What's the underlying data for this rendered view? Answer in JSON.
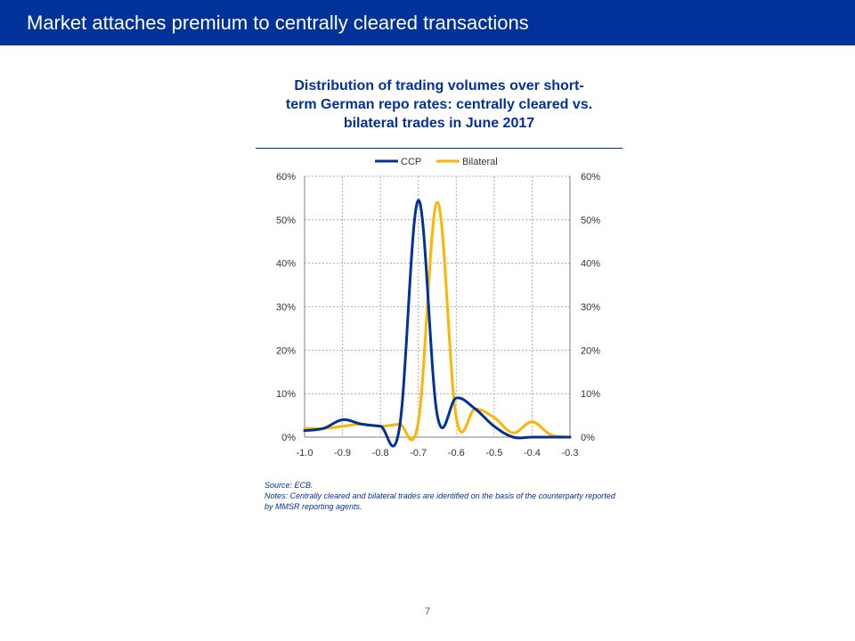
{
  "header": {
    "title": "Market attaches premium to centrally cleared transactions"
  },
  "footer": {
    "page_number": "7"
  },
  "colors": {
    "header_bg": "#003299",
    "ccp": "#003299",
    "bilateral": "#FFB400",
    "grid": "#9a9a9a"
  },
  "chart_data": {
    "type": "line",
    "title": "Distribution of trading volumes over short-term German repo rates: centrally cleared vs. bilateral trades in June 2017",
    "title_lines": [
      "Distribution of trading volumes over short-",
      "term German repo rates: centrally cleared vs.",
      "bilateral trades in June 2017"
    ],
    "xlabel": "",
    "ylabel": "",
    "xlim": [
      -1.0,
      -0.3
    ],
    "ylim": [
      0,
      60
    ],
    "x_ticks": [
      "-1.0",
      "-0.9",
      "-0.8",
      "-0.7",
      "-0.6",
      "-0.5",
      "-0.4",
      "-0.3"
    ],
    "y_ticks_left": [
      "0%",
      "10%",
      "20%",
      "30%",
      "40%",
      "50%",
      "60%"
    ],
    "y_ticks_right": [
      "0%",
      "10%",
      "20%",
      "30%",
      "40%",
      "50%",
      "60%"
    ],
    "grid": true,
    "legend_position": "top",
    "legend": [
      "CCP",
      "Bilateral"
    ],
    "series": [
      {
        "name": "CCP",
        "x": [
          -1.0,
          -0.95,
          -0.9,
          -0.85,
          -0.8,
          -0.75,
          -0.7,
          -0.65,
          -0.6,
          -0.55,
          -0.5,
          -0.45,
          -0.4,
          -0.35,
          -0.3
        ],
        "values": [
          1.5,
          2.0,
          4.0,
          3.0,
          2.5,
          2.0,
          54.5,
          5.0,
          9.0,
          6.5,
          2.5,
          0.0,
          0.0,
          0.0,
          0.0
        ]
      },
      {
        "name": "Bilateral",
        "x": [
          -1.0,
          -0.95,
          -0.9,
          -0.85,
          -0.8,
          -0.75,
          -0.7,
          -0.65,
          -0.6,
          -0.55,
          -0.5,
          -0.45,
          -0.4,
          -0.35,
          -0.3
        ],
        "values": [
          2.0,
          2.0,
          2.5,
          3.0,
          2.5,
          3.0,
          3.5,
          54.0,
          4.5,
          6.5,
          4.5,
          1.0,
          3.5,
          0.5,
          0.0
        ]
      }
    ]
  },
  "notes": {
    "source": "Source: ECB.",
    "text": "Notes: Centrally cleared and bilateral trades are identified on the basis of the counterparty reported by MMSR reporting agents."
  }
}
